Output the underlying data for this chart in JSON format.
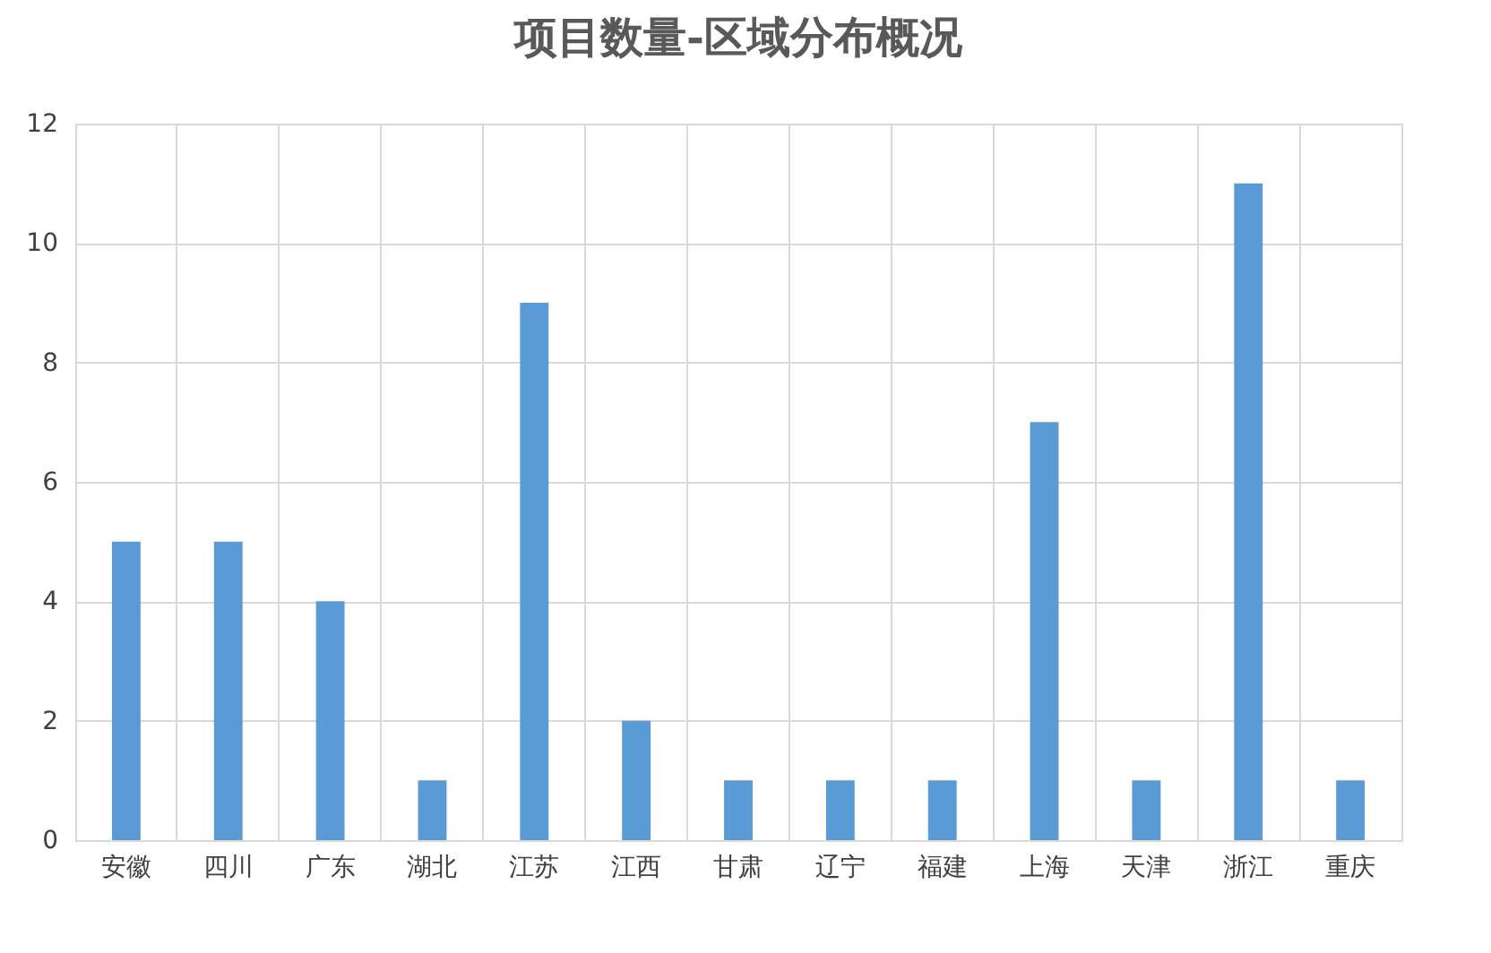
{
  "chart_data": {
    "type": "bar",
    "title": "项目数量-区域分布概况",
    "categories": [
      "安徽",
      "四川",
      "广东",
      "湖北",
      "江苏",
      "江西",
      "甘肃",
      "辽宁",
      "福建",
      "上海",
      "天津",
      "浙江",
      "重庆"
    ],
    "values": [
      5,
      5,
      4,
      1,
      9,
      2,
      1,
      1,
      1,
      7,
      1,
      11,
      1
    ],
    "color": "#5b9bd5",
    "ylim": [
      0,
      12
    ],
    "yticks": [
      0,
      2,
      4,
      6,
      8,
      10,
      12
    ],
    "grid": true
  }
}
